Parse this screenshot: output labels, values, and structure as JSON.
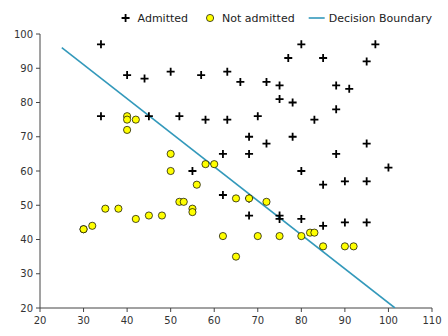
{
  "chart_data": {
    "type": "scatter",
    "series": [
      {
        "name": "Admitted",
        "color": "black",
        "marker": "plus",
        "x": [
          34,
          40,
          44,
          50,
          57,
          63,
          66,
          72,
          75,
          77,
          80,
          85,
          88,
          91,
          95,
          97,
          34,
          45,
          52,
          58,
          63,
          68,
          70,
          75,
          78,
          83,
          88,
          55,
          62,
          68,
          72,
          78,
          85,
          90,
          95,
          62,
          68,
          75,
          80,
          85,
          90,
          95,
          100,
          68,
          75,
          80,
          88,
          95
        ],
        "values": [
          97,
          88,
          87,
          89,
          88,
          89,
          86,
          86,
          85,
          93,
          97,
          93,
          85,
          84,
          92,
          97,
          76,
          76,
          76,
          75,
          75,
          70,
          76,
          81,
          80,
          75,
          78,
          60,
          65,
          65,
          68,
          70,
          56,
          57,
          57,
          53,
          52,
          46,
          46,
          44,
          45,
          45,
          61,
          47,
          47,
          60,
          65,
          68
        ]
      },
      {
        "name": "Not admitted",
        "color": "yellow",
        "marker": "circle",
        "x": [
          30,
          30,
          32,
          35,
          38,
          40,
          40,
          40,
          42,
          42,
          45,
          48,
          50,
          50,
          52,
          53,
          55,
          55,
          56,
          58,
          60,
          62,
          65,
          68,
          70,
          72,
          75,
          65,
          80,
          82,
          83,
          85,
          90,
          92
        ],
        "values": [
          43,
          43,
          44,
          49,
          49,
          76,
          75,
          72,
          75,
          46,
          47,
          47,
          60,
          65,
          51,
          51,
          49,
          48,
          56,
          62,
          62,
          41,
          52,
          52,
          41,
          51,
          41,
          35,
          41,
          42,
          42,
          38,
          38,
          38
        ]
      },
      {
        "name": "Decision Boundary",
        "type": "line",
        "color": "#3399BB",
        "x": [
          25,
          101.5
        ],
        "values": [
          96,
          20
        ]
      }
    ],
    "xlim": [
      20,
      110
    ],
    "ylim": [
      20,
      100
    ],
    "xticks": [
      20,
      30,
      40,
      50,
      60,
      70,
      80,
      90,
      100,
      110
    ],
    "yticks": [
      20,
      30,
      40,
      50,
      60,
      70,
      80,
      90,
      100
    ],
    "legend": "upper right",
    "grid": false
  }
}
